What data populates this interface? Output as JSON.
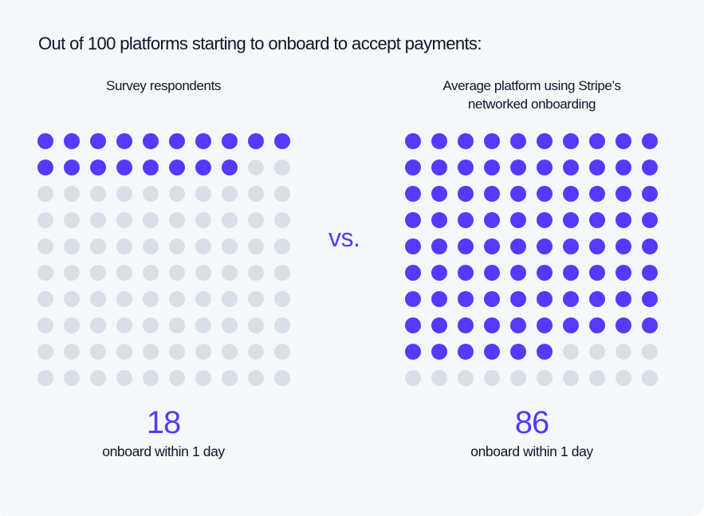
{
  "title": "Out of 100 platforms starting to onboard to accept payments:",
  "left": {
    "subtitle": "Survey respondents",
    "value": "18",
    "caption": "onboard within 1 day"
  },
  "right": {
    "subtitle_line1": "Average platform using Stripe’s",
    "subtitle_line2": "networked onboarding",
    "value": "86",
    "caption": "onboard within 1 day"
  },
  "vs_label": "vs.",
  "colors": {
    "accent": "#533afd",
    "inactive": "#d9dfe6",
    "background": "#f5f8fb",
    "text": "#0d1526"
  },
  "chart_data": {
    "type": "waffle",
    "title": "Out of 100 platforms starting to onboard to accept payments:",
    "grid": {
      "rows": 10,
      "cols": 10,
      "total": 100
    },
    "series": [
      {
        "name": "Survey respondents",
        "values": [
          18
        ],
        "label": "onboard within 1 day"
      },
      {
        "name": "Average platform using Stripe’s networked onboarding",
        "values": [
          86
        ],
        "label": "onboard within 1 day"
      }
    ],
    "categories": [
      "Survey respondents",
      "Average platform using Stripe’s networked onboarding"
    ],
    "values": [
      18,
      86
    ]
  }
}
